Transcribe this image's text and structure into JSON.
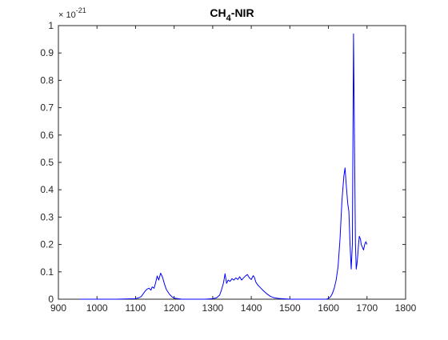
{
  "chart_data": {
    "type": "line",
    "title": {
      "main": "CH",
      "sub": "4",
      "suffix": "-NIR"
    },
    "xlabel": "",
    "ylabel": "",
    "xlim": [
      900,
      1800
    ],
    "ylim": [
      0,
      1
    ],
    "y_exponent_label": {
      "base": "× 10",
      "exp": "-21"
    },
    "x_ticks": [
      900,
      1000,
      1100,
      1200,
      1300,
      1400,
      1500,
      1600,
      1700,
      1800
    ],
    "y_ticks": [
      0,
      0.1,
      0.2,
      0.3,
      0.4,
      0.5,
      0.6,
      0.7,
      0.8,
      0.9,
      1
    ],
    "grid": false,
    "line_color": "#0000ff",
    "series": [
      {
        "x": [
          955,
          1050,
          1100,
          1108,
          1115,
          1120,
          1125,
          1130,
          1135,
          1140,
          1143,
          1148,
          1152,
          1156,
          1160,
          1165,
          1170,
          1175,
          1180,
          1188,
          1195,
          1200,
          1210,
          1220,
          1240,
          1280,
          1300,
          1310,
          1318,
          1323,
          1328,
          1332,
          1336,
          1340,
          1345,
          1350,
          1355,
          1360,
          1365,
          1370,
          1375,
          1380,
          1385,
          1390,
          1395,
          1400,
          1405,
          1408,
          1412,
          1418,
          1425,
          1432,
          1440,
          1450,
          1460,
          1470,
          1480,
          1500,
          1560,
          1595,
          1600,
          1605,
          1610,
          1615,
          1620,
          1625,
          1630,
          1635,
          1640,
          1643,
          1646,
          1650,
          1653,
          1656,
          1659,
          1662,
          1665,
          1668,
          1670,
          1672,
          1674,
          1676,
          1678,
          1680,
          1683,
          1685,
          1688,
          1691,
          1694,
          1697,
          1700
        ],
        "y": [
          0,
          0,
          0.002,
          0.005,
          0.01,
          0.02,
          0.03,
          0.037,
          0.04,
          0.033,
          0.045,
          0.04,
          0.06,
          0.085,
          0.07,
          0.095,
          0.08,
          0.055,
          0.035,
          0.018,
          0.008,
          0.004,
          0.002,
          0,
          0,
          0,
          0.002,
          0.005,
          0.015,
          0.035,
          0.06,
          0.093,
          0.058,
          0.07,
          0.065,
          0.075,
          0.07,
          0.078,
          0.072,
          0.082,
          0.07,
          0.078,
          0.085,
          0.09,
          0.078,
          0.072,
          0.086,
          0.08,
          0.062,
          0.05,
          0.04,
          0.03,
          0.02,
          0.01,
          0.005,
          0.003,
          0.002,
          0,
          0,
          0,
          0.003,
          0.008,
          0.02,
          0.04,
          0.07,
          0.12,
          0.22,
          0.36,
          0.45,
          0.48,
          0.42,
          0.35,
          0.32,
          0.2,
          0.11,
          0.2,
          0.97,
          0.5,
          0.2,
          0.11,
          0.13,
          0.16,
          0.2,
          0.23,
          0.22,
          0.2,
          0.19,
          0.18,
          0.2,
          0.21,
          0.2
        ]
      }
    ]
  }
}
